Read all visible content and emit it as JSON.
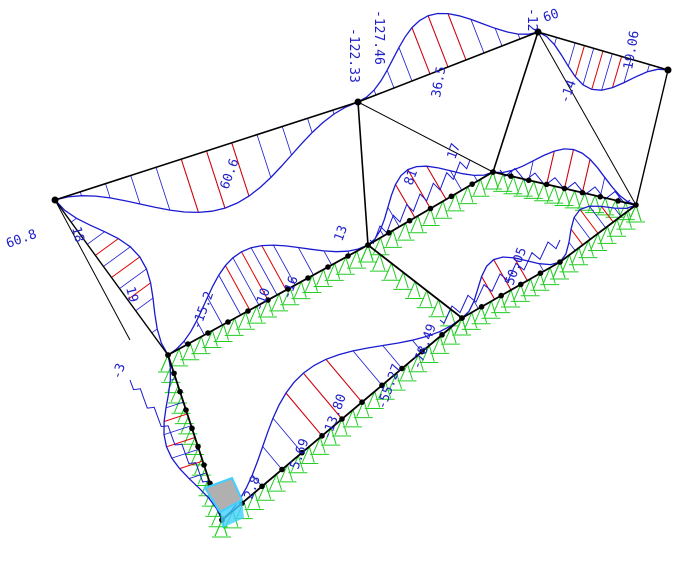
{
  "colors": {
    "background": "#ffffff",
    "frame": "#000000",
    "moment": "#1a1ad0",
    "hatch": "#e00000",
    "support": "#22cc22",
    "node": "#000000",
    "selected": "#40d0ff",
    "highlight": "#b0b0b0"
  },
  "labels": [
    {
      "text": "-127.46",
      "kind": "moment-value"
    },
    {
      "text": "-122.33",
      "kind": "moment-value"
    },
    {
      "text": "-12",
      "kind": "moment-value"
    },
    {
      "text": "60.8",
      "kind": "moment-value"
    },
    {
      "text": "60",
      "kind": "moment-value"
    },
    {
      "text": "19.06",
      "kind": "moment-value"
    },
    {
      "text": "36.5",
      "kind": "moment-value"
    },
    {
      "text": "60.6",
      "kind": "moment-value"
    },
    {
      "text": "18",
      "kind": "moment-value"
    },
    {
      "text": "19",
      "kind": "moment-value"
    },
    {
      "text": "13",
      "kind": "moment-value"
    },
    {
      "text": "17",
      "kind": "moment-value"
    },
    {
      "text": "81",
      "kind": "moment-value"
    },
    {
      "text": "-14",
      "kind": "moment-value"
    },
    {
      "text": "50.05",
      "kind": "moment-value"
    },
    {
      "text": "-78.49",
      "kind": "moment-value"
    },
    {
      "text": "-55.27",
      "kind": "moment-value"
    },
    {
      "text": "-13.80",
      "kind": "moment-value"
    },
    {
      "text": "5.69",
      "kind": "moment-value"
    },
    {
      "text": "2.8",
      "kind": "moment-value"
    },
    {
      "text": "-16",
      "kind": "moment-value"
    },
    {
      "text": "-10",
      "kind": "moment-value"
    },
    {
      "text": "-15.2",
      "kind": "moment-value"
    },
    {
      "text": "-3",
      "kind": "moment-value"
    }
  ]
}
